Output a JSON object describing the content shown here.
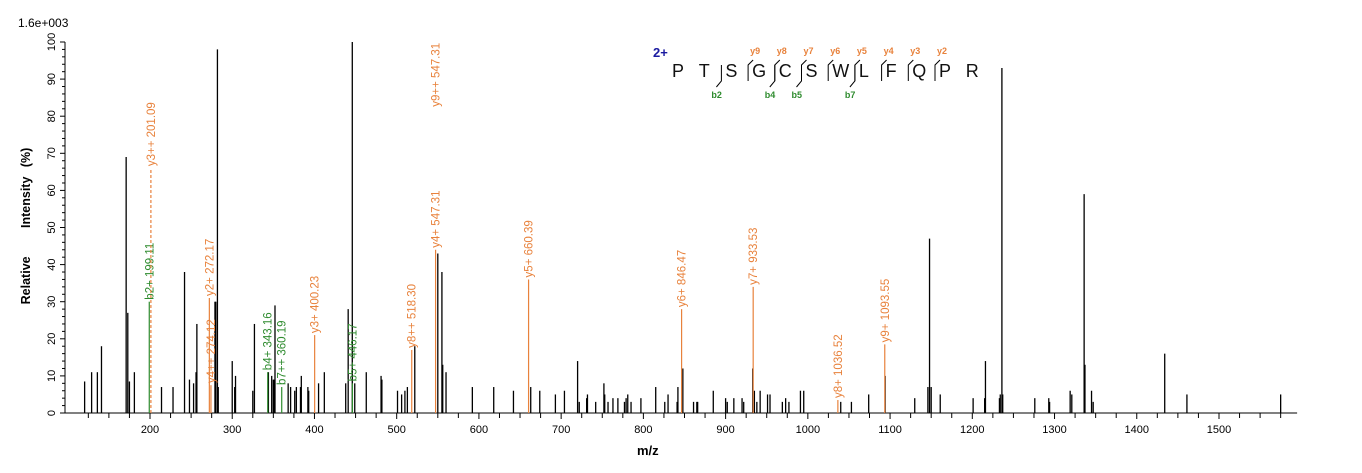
{
  "header": {
    "scale_label": "1.6e+003"
  },
  "sequence_panel": {
    "charge": "2+",
    "residues": [
      "P",
      "T",
      "S",
      "G",
      "C",
      "S",
      "W",
      "L",
      "F",
      "Q",
      "P",
      "R"
    ],
    "y_ions": [
      {
        "label": "y9",
        "after_index": 2
      },
      {
        "label": "y8",
        "after_index": 3
      },
      {
        "label": "y7",
        "after_index": 4
      },
      {
        "label": "y6",
        "after_index": 5
      },
      {
        "label": "y5",
        "after_index": 6
      },
      {
        "label": "y4",
        "after_index": 7
      },
      {
        "label": "y3",
        "after_index": 8
      },
      {
        "label": "y2",
        "after_index": 9
      }
    ],
    "b_ions": [
      {
        "label": "b2",
        "after_index": 1
      },
      {
        "label": "b4",
        "after_index": 3
      },
      {
        "label": "b5",
        "after_index": 4
      },
      {
        "label": "b7",
        "after_index": 6
      }
    ]
  },
  "colors": {
    "peak": "#000000",
    "y_ion": "#e8823c",
    "b_ion": "#2e8b2e",
    "charge": "#1a1aa0",
    "axis": "#000000"
  },
  "chart_data": {
    "type": "bar",
    "title": "",
    "xlabel": "m/z",
    "ylabel": "Relative   Intensity (%)",
    "xlim": [
      118,
      1595
    ],
    "ylim": [
      0,
      100
    ],
    "x_ticks": [
      200,
      300,
      400,
      500,
      600,
      700,
      800,
      900,
      1000,
      1100,
      1200,
      1300,
      1400,
      1500
    ],
    "x_minor_step": 25,
    "y_ticks": [
      0,
      10,
      20,
      30,
      40,
      50,
      60,
      70,
      80,
      90,
      100
    ],
    "y_minor_step": 2,
    "grid": false,
    "legend": null,
    "base_peak_intensity": "1.6e+003",
    "peaks": [
      {
        "mz": 120.5,
        "i": 8.5
      },
      {
        "mz": 129,
        "i": 11
      },
      {
        "mz": 136,
        "i": 11
      },
      {
        "mz": 141,
        "i": 18
      },
      {
        "mz": 171,
        "i": 69
      },
      {
        "mz": 173,
        "i": 27
      },
      {
        "mz": 175,
        "i": 8.5
      },
      {
        "mz": 181,
        "i": 11
      },
      {
        "mz": 214,
        "i": 7
      },
      {
        "mz": 228,
        "i": 7
      },
      {
        "mz": 242,
        "i": 38
      },
      {
        "mz": 248,
        "i": 9
      },
      {
        "mz": 253,
        "i": 8
      },
      {
        "mz": 256,
        "i": 11
      },
      {
        "mz": 257,
        "i": 24
      },
      {
        "mz": 279,
        "i": 30
      },
      {
        "mz": 280,
        "i": 30
      },
      {
        "mz": 282,
        "i": 98
      },
      {
        "mz": 283,
        "i": 7
      },
      {
        "mz": 300,
        "i": 14
      },
      {
        "mz": 303,
        "i": 7
      },
      {
        "mz": 304,
        "i": 10
      },
      {
        "mz": 325,
        "i": 6
      },
      {
        "mz": 327,
        "i": 24
      },
      {
        "mz": 344,
        "i": 11
      },
      {
        "mz": 348,
        "i": 10
      },
      {
        "mz": 350,
        "i": 9
      },
      {
        "mz": 351,
        "i": 9
      },
      {
        "mz": 352,
        "i": 29
      },
      {
        "mz": 368,
        "i": 8
      },
      {
        "mz": 371,
        "i": 7
      },
      {
        "mz": 376,
        "i": 6
      },
      {
        "mz": 378,
        "i": 7
      },
      {
        "mz": 383,
        "i": 7
      },
      {
        "mz": 384,
        "i": 10
      },
      {
        "mz": 392,
        "i": 7
      },
      {
        "mz": 393,
        "i": 6
      },
      {
        "mz": 405,
        "i": 8
      },
      {
        "mz": 412,
        "i": 11
      },
      {
        "mz": 438,
        "i": 8
      },
      {
        "mz": 441,
        "i": 28
      },
      {
        "mz": 446,
        "i": 100
      },
      {
        "mz": 449,
        "i": 8
      },
      {
        "mz": 463,
        "i": 11
      },
      {
        "mz": 481,
        "i": 10
      },
      {
        "mz": 482,
        "i": 9
      },
      {
        "mz": 501,
        "i": 6
      },
      {
        "mz": 506,
        "i": 5
      },
      {
        "mz": 510,
        "i": 6
      },
      {
        "mz": 513,
        "i": 7
      },
      {
        "mz": 522,
        "i": 18
      },
      {
        "mz": 550,
        "i": 43
      },
      {
        "mz": 555,
        "i": 38
      },
      {
        "mz": 556,
        "i": 13
      },
      {
        "mz": 560,
        "i": 11
      },
      {
        "mz": 592,
        "i": 7
      },
      {
        "mz": 618,
        "i": 7
      },
      {
        "mz": 642,
        "i": 6
      },
      {
        "mz": 663,
        "i": 7
      },
      {
        "mz": 674,
        "i": 6
      },
      {
        "mz": 693,
        "i": 5
      },
      {
        "mz": 704,
        "i": 6
      },
      {
        "mz": 720,
        "i": 14
      },
      {
        "mz": 722,
        "i": 3
      },
      {
        "mz": 731,
        "i": 4
      },
      {
        "mz": 732,
        "i": 5
      },
      {
        "mz": 742,
        "i": 3
      },
      {
        "mz": 752,
        "i": 8
      },
      {
        "mz": 753,
        "i": 5
      },
      {
        "mz": 757,
        "i": 3
      },
      {
        "mz": 763,
        "i": 4
      },
      {
        "mz": 769,
        "i": 4
      },
      {
        "mz": 777,
        "i": 3
      },
      {
        "mz": 779,
        "i": 4
      },
      {
        "mz": 781,
        "i": 5
      },
      {
        "mz": 785,
        "i": 3
      },
      {
        "mz": 797,
        "i": 4
      },
      {
        "mz": 815,
        "i": 7
      },
      {
        "mz": 826,
        "i": 3
      },
      {
        "mz": 830,
        "i": 5
      },
      {
        "mz": 841,
        "i": 3
      },
      {
        "mz": 842,
        "i": 7
      },
      {
        "mz": 848,
        "i": 12
      },
      {
        "mz": 861,
        "i": 3
      },
      {
        "mz": 865,
        "i": 3
      },
      {
        "mz": 866,
        "i": 3
      },
      {
        "mz": 885,
        "i": 6
      },
      {
        "mz": 900,
        "i": 4
      },
      {
        "mz": 902,
        "i": 3
      },
      {
        "mz": 910,
        "i": 4
      },
      {
        "mz": 920,
        "i": 4
      },
      {
        "mz": 922,
        "i": 3
      },
      {
        "mz": 933,
        "i": 12
      },
      {
        "mz": 935,
        "i": 6
      },
      {
        "mz": 938,
        "i": 3
      },
      {
        "mz": 942,
        "i": 6
      },
      {
        "mz": 951,
        "i": 5
      },
      {
        "mz": 954,
        "i": 5
      },
      {
        "mz": 969,
        "i": 3
      },
      {
        "mz": 973,
        "i": 4
      },
      {
        "mz": 977,
        "i": 3
      },
      {
        "mz": 991,
        "i": 6
      },
      {
        "mz": 995,
        "i": 6
      },
      {
        "mz": 1040,
        "i": 3
      },
      {
        "mz": 1053,
        "i": 3
      },
      {
        "mz": 1074,
        "i": 5
      },
      {
        "mz": 1094,
        "i": 10
      },
      {
        "mz": 1130,
        "i": 4
      },
      {
        "mz": 1146,
        "i": 7
      },
      {
        "mz": 1148,
        "i": 47
      },
      {
        "mz": 1150,
        "i": 7
      },
      {
        "mz": 1161,
        "i": 5
      },
      {
        "mz": 1201,
        "i": 4
      },
      {
        "mz": 1215,
        "i": 4
      },
      {
        "mz": 1216,
        "i": 14
      },
      {
        "mz": 1233,
        "i": 4
      },
      {
        "mz": 1234,
        "i": 5
      },
      {
        "mz": 1236,
        "i": 93
      },
      {
        "mz": 1237,
        "i": 5
      },
      {
        "mz": 1276,
        "i": 4
      },
      {
        "mz": 1293,
        "i": 4
      },
      {
        "mz": 1294,
        "i": 3
      },
      {
        "mz": 1319,
        "i": 6
      },
      {
        "mz": 1321,
        "i": 5
      },
      {
        "mz": 1336,
        "i": 59
      },
      {
        "mz": 1337,
        "i": 13
      },
      {
        "mz": 1345,
        "i": 6
      },
      {
        "mz": 1347,
        "i": 3
      },
      {
        "mz": 1434,
        "i": 16
      },
      {
        "mz": 1461,
        "i": 5
      },
      {
        "mz": 1575,
        "i": 5
      }
    ],
    "annotations": [
      {
        "label": "b2+ 199.11",
        "mz": 199.11,
        "i": 16.5,
        "label_top": 30,
        "ion": "b"
      },
      {
        "label": "y3++ 201.09",
        "mz": 201.09,
        "i": 0,
        "label_top": 66,
        "ion": "y",
        "dashed": true
      },
      {
        "label": "y4++ 274.12",
        "mz": 274.12,
        "i": 7,
        "label_top": 7.5,
        "ion": "y"
      },
      {
        "label": "y2+ 272.17",
        "mz": 272.17,
        "i": 7,
        "label_top": 31,
        "ion": "y"
      },
      {
        "label": "b4+ 343.16",
        "mz": 343.16,
        "i": 10,
        "label_top": 11,
        "ion": "b"
      },
      {
        "label": "b7++ 360.19",
        "mz": 360.19,
        "i": 8,
        "label_top": 7,
        "ion": "b"
      },
      {
        "label": "y3+ 400.23",
        "mz": 400.23,
        "i": 7,
        "label_top": 21,
        "ion": "y"
      },
      {
        "label": "b5+ 446.17",
        "mz": 446.17,
        "i": 8,
        "label_top": 8,
        "ion": "b"
      },
      {
        "label": "y8++ 518.30",
        "mz": 518.3,
        "i": 0,
        "label_top": 17,
        "ion": "y"
      },
      {
        "label": "y4+ 547.31",
        "mz": 547.31,
        "i": 43,
        "label_top": 44,
        "ion": "y"
      },
      {
        "label": "y9++ 547.31",
        "mz": 547.31,
        "i": 43,
        "label_top": 82,
        "ion": "y",
        "label_only": true
      },
      {
        "label": "y5+ 660.39",
        "mz": 660.39,
        "i": 0,
        "label_top": 36,
        "ion": "y"
      },
      {
        "label": "y6+ 846.47",
        "mz": 846.47,
        "i": 0,
        "label_top": 28,
        "ion": "y"
      },
      {
        "label": "y7+ 933.53",
        "mz": 933.53,
        "i": 0,
        "label_top": 34,
        "ion": "y"
      },
      {
        "label": "y8+ 1036.52",
        "mz": 1036.52,
        "i": 0,
        "label_top": 3.5,
        "ion": "y"
      },
      {
        "label": "y9+ 1093.55",
        "mz": 1093.55,
        "i": 0,
        "label_top": 18.5,
        "ion": "y"
      }
    ]
  }
}
